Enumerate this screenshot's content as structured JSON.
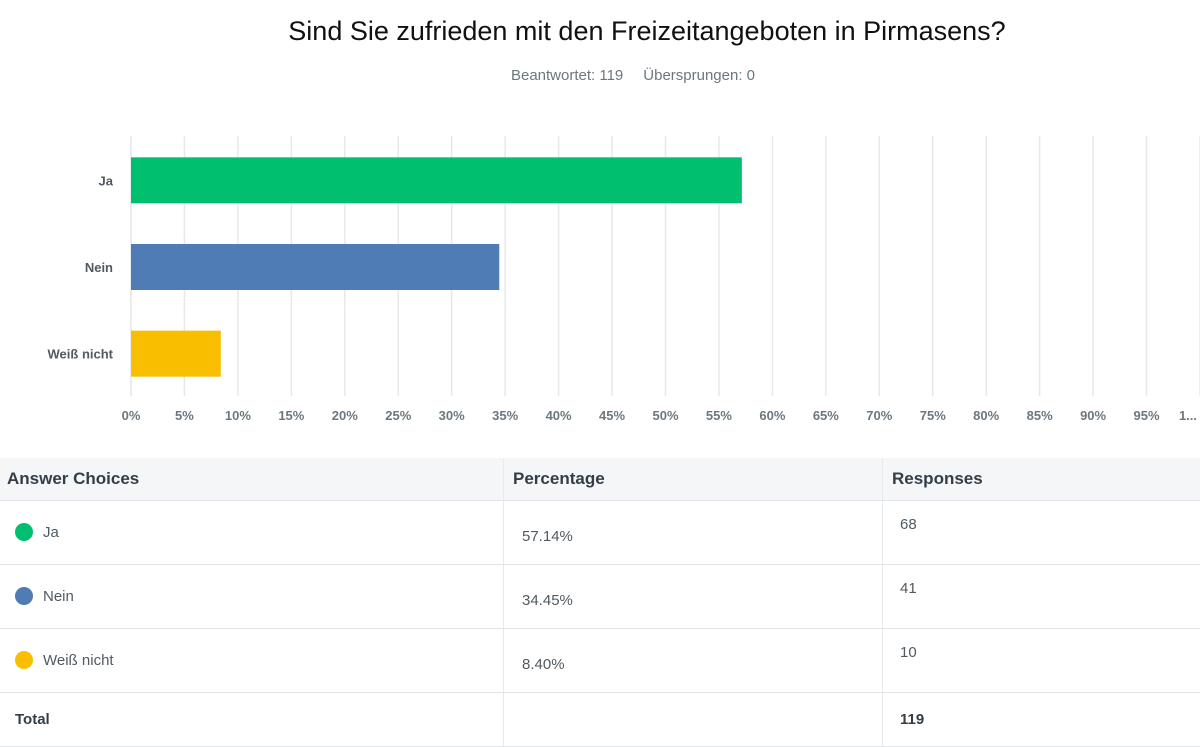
{
  "header": {
    "title": "Sind Sie zufrieden mit den Freizeitangeboten in Pirmasens?",
    "answered_label": "Beantwortet: 119",
    "skipped_label": "Übersprungen: 0"
  },
  "chart_data": {
    "type": "bar",
    "orientation": "horizontal",
    "title": "Sind Sie zufrieden mit den Freizeitangeboten in Pirmasens?",
    "categories": [
      "Ja",
      "Nein",
      "Weiß nicht"
    ],
    "values": [
      57.14,
      34.45,
      8.4
    ],
    "colors": [
      "#00bf6f",
      "#507cb6",
      "#f9be00"
    ],
    "xlim": [
      0,
      100
    ],
    "x_ticks": [
      "0%",
      "5%",
      "10%",
      "15%",
      "20%",
      "25%",
      "30%",
      "35%",
      "40%",
      "45%",
      "50%",
      "55%",
      "60%",
      "65%",
      "70%",
      "75%",
      "80%",
      "85%",
      "90%",
      "95%",
      "1..."
    ],
    "xlabel": "",
    "ylabel": "",
    "grid": true
  },
  "table": {
    "headers": [
      "Answer Choices",
      "Percentage",
      "Responses"
    ],
    "rows": [
      {
        "choice": "Ja",
        "percentage": "57.14%",
        "responses": "68",
        "color": "#00bf6f"
      },
      {
        "choice": "Nein",
        "percentage": "34.45%",
        "responses": "41",
        "color": "#507cb6"
      },
      {
        "choice": "Weiß nicht",
        "percentage": "8.40%",
        "responses": "10",
        "color": "#f9be00"
      }
    ],
    "total_label": "Total",
    "total_value": "119"
  }
}
